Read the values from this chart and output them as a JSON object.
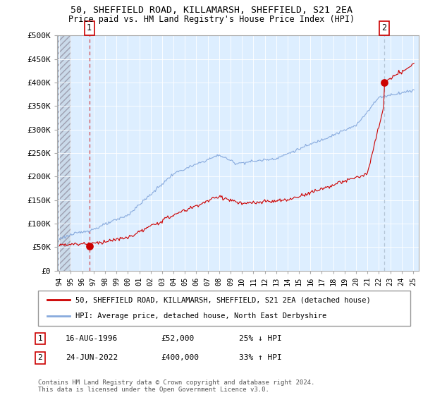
{
  "title1": "50, SHEFFIELD ROAD, KILLAMARSH, SHEFFIELD, S21 2EA",
  "title2": "Price paid vs. HM Land Registry's House Price Index (HPI)",
  "property_label": "50, SHEFFIELD ROAD, KILLAMARSH, SHEFFIELD, S21 2EA (detached house)",
  "hpi_label": "HPI: Average price, detached house, North East Derbyshire",
  "footnote": "Contains HM Land Registry data © Crown copyright and database right 2024.\nThis data is licensed under the Open Government Licence v3.0.",
  "sale1_date": "16-AUG-1996",
  "sale1_price": 52000,
  "sale1_note": "25% ↓ HPI",
  "sale1_year": 1996.62,
  "sale2_date": "24-JUN-2022",
  "sale2_price": 400000,
  "sale2_note": "33% ↑ HPI",
  "sale2_year": 2022.47,
  "property_color": "#cc0000",
  "hpi_color": "#88aadd",
  "sale1_vline_color": "#cc0000",
  "sale2_vline_color": "#aabbcc",
  "background_plot": "#ddeeff",
  "background_hatch_color": "#c8d8e8",
  "ylim": [
    0,
    500000
  ],
  "xlim_start": 1993.8,
  "xlim_end": 2025.5,
  "yticks": [
    0,
    50000,
    100000,
    150000,
    200000,
    250000,
    300000,
    350000,
    400000,
    450000,
    500000
  ],
  "ytick_labels": [
    "£0",
    "£50K",
    "£100K",
    "£150K",
    "£200K",
    "£250K",
    "£300K",
    "£350K",
    "£400K",
    "£450K",
    "£500K"
  ],
  "xticks": [
    1994,
    1995,
    1996,
    1997,
    1998,
    1999,
    2000,
    2001,
    2002,
    2003,
    2004,
    2005,
    2006,
    2007,
    2008,
    2009,
    2010,
    2011,
    2012,
    2013,
    2014,
    2015,
    2016,
    2017,
    2018,
    2019,
    2020,
    2021,
    2022,
    2023,
    2024,
    2025
  ]
}
